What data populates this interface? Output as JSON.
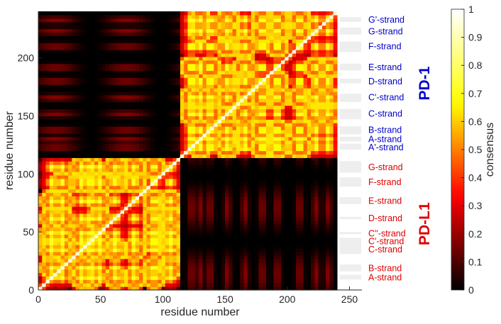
{
  "chart_data": {
    "type": "heatmap",
    "title": "",
    "xlabel": "residue number",
    "ylabel": "residue number",
    "xlim": [
      0,
      260
    ],
    "ylim": [
      0,
      240
    ],
    "x_ticks": [
      0,
      50,
      100,
      150,
      200,
      250
    ],
    "y_ticks": [
      0,
      50,
      100,
      150,
      200
    ],
    "n_residues": 240,
    "boundary_residue": 115,
    "colorbar": {
      "label": "consensus",
      "min": 0,
      "max": 1,
      "ticks": [
        0,
        0.1,
        0.2,
        0.3,
        0.4,
        0.5,
        0.6,
        0.7,
        0.8,
        0.9,
        1
      ],
      "colormap": "hot",
      "colors": [
        "#000000",
        "#ff0000",
        "#ffff00",
        "#ffffff"
      ]
    },
    "proteins": [
      {
        "name": "PD-1",
        "color": "#0000cc",
        "center_residue": 178,
        "strands": [
          {
            "label": "G'-strand",
            "residue": 233,
            "range": [
              231,
              235
            ]
          },
          {
            "label": "G-strand",
            "residue": 223,
            "range": [
              220,
              226
            ]
          },
          {
            "label": "F-strand",
            "residue": 210,
            "range": [
              205,
              214
            ]
          },
          {
            "label": "E-strand",
            "residue": 192,
            "range": [
              189,
              195
            ]
          },
          {
            "label": "D-strand",
            "residue": 180,
            "range": [
              178,
              182
            ]
          },
          {
            "label": "C'-strand",
            "residue": 166,
            "range": [
              162,
              169
            ]
          },
          {
            "label": "C-strand",
            "residue": 152,
            "range": [
              147,
              156
            ]
          },
          {
            "label": "B-strand",
            "residue": 138,
            "range": [
              134,
              141
            ]
          },
          {
            "label": "A-strand",
            "residue": 130,
            "range": [
              128,
              132
            ]
          },
          {
            "label": "A'-strand",
            "residue": 123,
            "range": [
              121,
              126
            ]
          }
        ]
      },
      {
        "name": "PD-L1",
        "color": "#dd0000",
        "center_residue": 57,
        "strands": [
          {
            "label": "G-strand",
            "residue": 106,
            "range": [
              101,
              111
            ]
          },
          {
            "label": "F-strand",
            "residue": 93,
            "range": [
              89,
              97
            ]
          },
          {
            "label": "E-strand",
            "residue": 77,
            "range": [
              74,
              80
            ]
          },
          {
            "label": "D-strand",
            "residue": 62,
            "range": [
              61,
              63
            ]
          },
          {
            "label": "C''-strand",
            "residue": 49,
            "range": [
              48,
              50
            ]
          },
          {
            "label": "C'-strand",
            "residue": 42,
            "range": [
              39,
              45
            ]
          },
          {
            "label": "C-strand",
            "residue": 35,
            "range": [
              31,
              39
            ]
          },
          {
            "label": "B-strand",
            "residue": 19,
            "range": [
              16,
              22
            ]
          },
          {
            "label": "A-strand",
            "residue": 11,
            "range": [
              9,
              13
            ]
          }
        ]
      }
    ]
  }
}
